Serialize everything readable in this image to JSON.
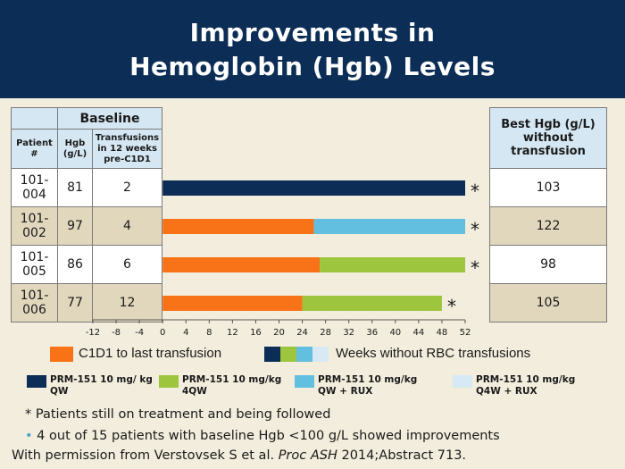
{
  "header": {
    "title_line1": "Improvements in",
    "title_line2": "Hemoglobin (Hgb) Levels"
  },
  "left_table": {
    "group_header": "Baseline",
    "col_patient": "Patient #",
    "col_hgb": "Hgb (g/L)",
    "col_transfusions": "Transfusions in 12 weeks pre-C1D1"
  },
  "right_table": {
    "header": "Best Hgb (g/L) without transfusion"
  },
  "patients": [
    {
      "id": "101-004",
      "hgb": "81",
      "transfusions": "2",
      "best_hgb": "103"
    },
    {
      "id": "101-002",
      "hgb": "97",
      "transfusions": "4",
      "best_hgb": "122"
    },
    {
      "id": "101-005",
      "hgb": "86",
      "transfusions": "6",
      "best_hgb": "98"
    },
    {
      "id": "101-006",
      "hgb": "77",
      "transfusions": "12",
      "best_hgb": "105"
    }
  ],
  "chart_data": {
    "type": "bar",
    "orientation": "horizontal",
    "stacked": true,
    "xlim": [
      -12,
      52
    ],
    "x_ticks": [
      -12,
      -8,
      -4,
      0,
      4,
      8,
      12,
      16,
      20,
      24,
      28,
      32,
      36,
      40,
      44,
      48,
      52
    ],
    "categories": [
      "101-004",
      "101-002",
      "101-005",
      "101-006"
    ],
    "bars": [
      {
        "category": "101-004",
        "segments": [
          {
            "series": "PRM-151 10 mg/kg QW",
            "start": 0,
            "end": 52
          }
        ],
        "marker": "*"
      },
      {
        "category": "101-002",
        "segments": [
          {
            "series": "C1D1 to last transfusion",
            "start": 0,
            "end": 26
          },
          {
            "series": "PRM-151 10 mg/kg QW + RUX",
            "start": 26,
            "end": 52
          }
        ],
        "marker": "*"
      },
      {
        "category": "101-005",
        "segments": [
          {
            "series": "C1D1 to last transfusion",
            "start": 0,
            "end": 27
          },
          {
            "series": "PRM-151 10 mg/kg 4QW",
            "start": 27,
            "end": 52
          }
        ],
        "marker": "*"
      },
      {
        "category": "101-006",
        "segments": [
          {
            "series": "C1D1 to last transfusion",
            "start": 0,
            "end": 24
          },
          {
            "series": "PRM-151 10 mg/kg 4QW",
            "start": 24,
            "end": 48
          }
        ],
        "marker": "*"
      }
    ],
    "grid": false
  },
  "colors": {
    "c1d1": "#f87217",
    "qw": "#0c2d55",
    "4qw": "#9dc53d",
    "qw_rux": "#63bfe0",
    "q4w_rux": "#d6e9f5"
  },
  "legend": {
    "c1d1_label": "C1D1 to last transfusion",
    "weeks_label": "Weeks without RBC transfusions",
    "items": [
      {
        "label": "PRM-151 10 mg/ kg QW"
      },
      {
        "label": "PRM-151 10 mg/kg 4QW"
      },
      {
        "label": "PRM-151 10 mg/kg QW + RUX"
      },
      {
        "label": "PRM-151 10 mg/kg Q4W + RUX"
      }
    ]
  },
  "notes": {
    "asterisk_note": "* Patients still on treatment and being followed",
    "bullet_note": "4 out of 15 patients with baseline Hgb <100 g/L showed improvements",
    "citation_prefix": "With permission from Verstovsek S et al. ",
    "citation_journal": "Proc ASH",
    "citation_suffix": " 2014;Abstract 713."
  }
}
